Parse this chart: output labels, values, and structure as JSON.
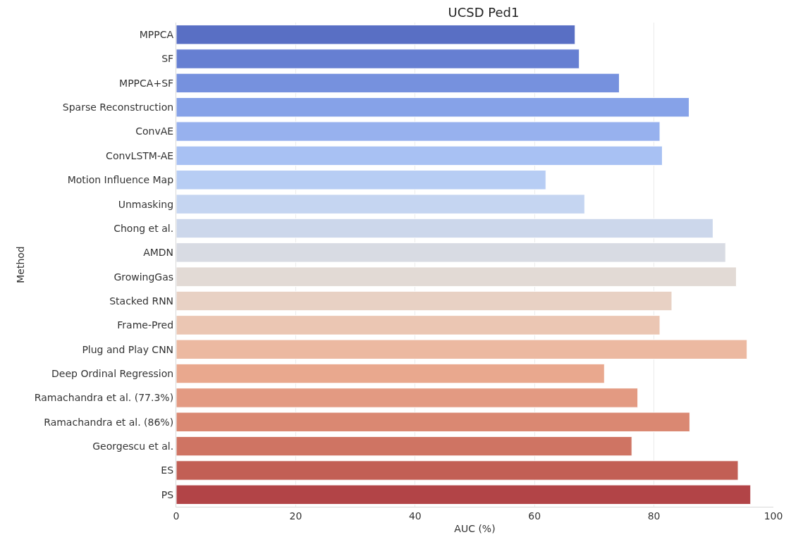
{
  "chart_data": {
    "type": "bar",
    "orientation": "horizontal",
    "title": "UCSD Ped1",
    "xlabel": "AUC (%)",
    "ylabel": "Method",
    "categories": [
      "MPPCA",
      "SF",
      "MPPCA+SF",
      "Sparse Reconstruction",
      "ConvAE",
      "ConvLSTM-AE",
      "Motion Influence Map",
      "Unmasking",
      "Chong et al.",
      "AMDN",
      "GrowingGas",
      "Stacked RNN",
      "Frame-Pred",
      "Plug and Play CNN",
      "Deep Ordinal Regression",
      "Ramachandra et al. (77.3%)",
      "Ramachandra et al. (86%)",
      "Georgescu et al.",
      "ES",
      "PS"
    ],
    "values": [
      66.8,
      67.5,
      74.2,
      85.9,
      81.0,
      81.4,
      61.9,
      68.4,
      89.9,
      92.0,
      93.8,
      83.0,
      81.0,
      95.6,
      71.7,
      77.3,
      86.0,
      76.3,
      94.1,
      96.2
    ],
    "colors": [
      "#596fc4",
      "#667fd2",
      "#7691de",
      "#86a2e8",
      "#97b1ee",
      "#a8c1f3",
      "#b7cdf4",
      "#c5d5f1",
      "#ccd7eb",
      "#d8dbe3",
      "#e2dad5",
      "#e8d1c4",
      "#ebc6b3",
      "#ecb9a1",
      "#e9a88e",
      "#e39a82",
      "#da8872",
      "#cf7463",
      "#c25f55",
      "#b24447"
    ],
    "xlim": [
      0,
      100
    ],
    "xticks": [
      0,
      20,
      40,
      60,
      80,
      100
    ],
    "grid": "x"
  }
}
